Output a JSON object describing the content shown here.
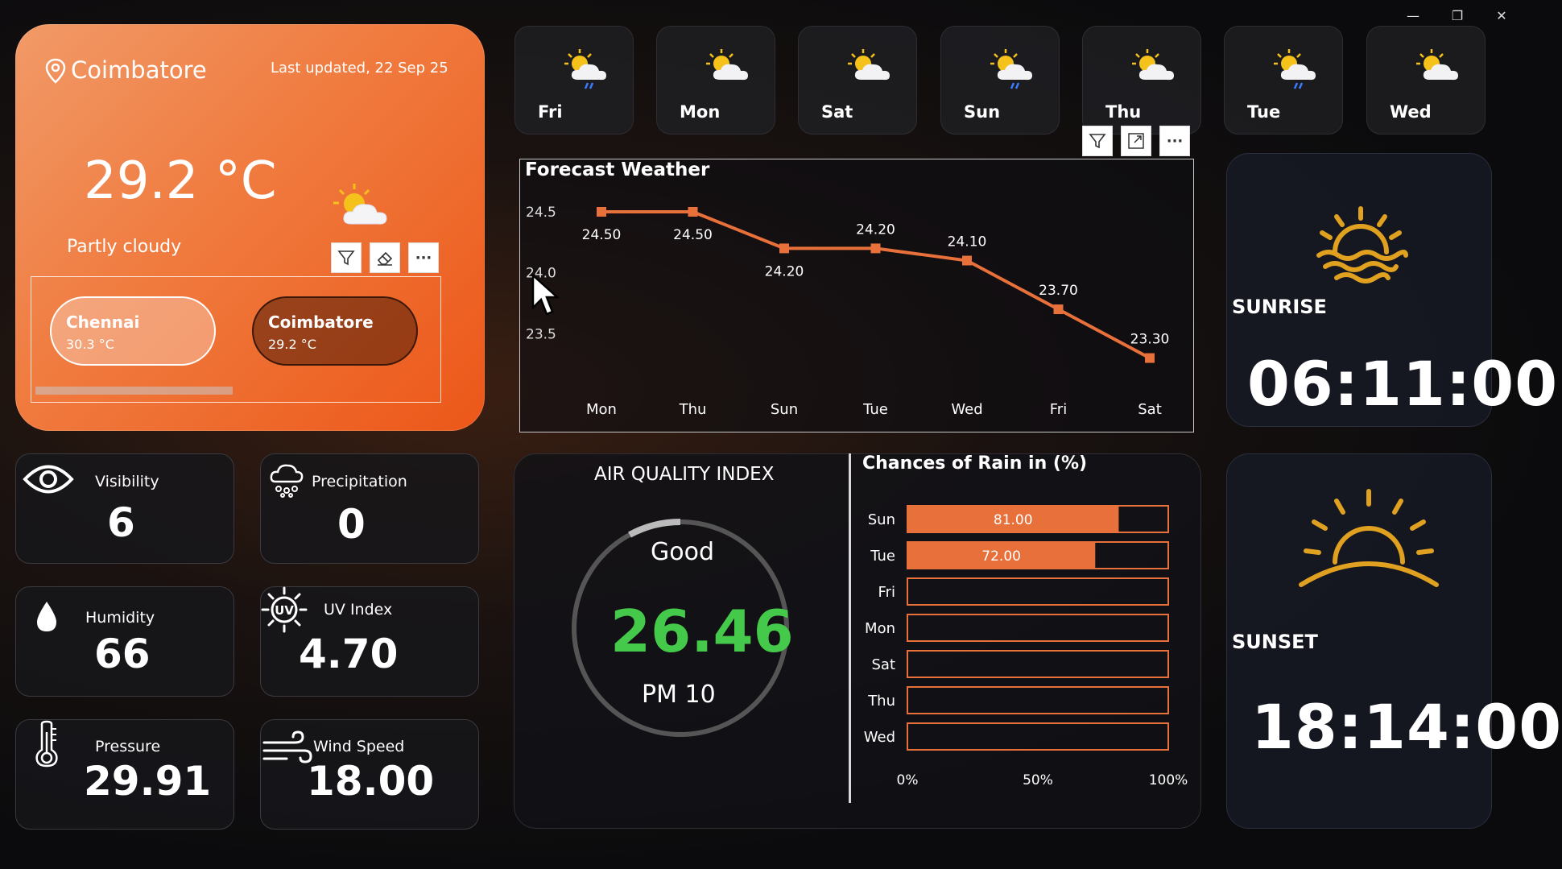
{
  "window": {
    "minimize": "—",
    "restore": "❐",
    "close": "✕"
  },
  "city_card": {
    "city": "Coimbatore",
    "last_updated": "Last updated, 22 Sep 25",
    "temperature": "29.2 °C",
    "condition": "Partly cloudy",
    "toolbar": [
      "filter-icon",
      "eraser-icon",
      "more-icon"
    ],
    "more_label": "···",
    "slicer": [
      {
        "name": "Chennai",
        "temp": "30.3 °C"
      },
      {
        "name": "Coimbatore",
        "temp": "29.2 °C"
      }
    ]
  },
  "days": [
    {
      "label": "Fri",
      "icon": "sun-cloud-rain-icon"
    },
    {
      "label": "Mon",
      "icon": "sun-cloud-icon"
    },
    {
      "label": "Sat",
      "icon": "sun-cloud-icon"
    },
    {
      "label": "Sun",
      "icon": "sun-cloud-rain-icon"
    },
    {
      "label": "Thu",
      "icon": "sun-cloud-icon"
    },
    {
      "label": "Tue",
      "icon": "sun-cloud-rain-icon"
    },
    {
      "label": "Wed",
      "icon": "sun-cloud-icon"
    }
  ],
  "chart_toolbar": {
    "more_label": "···"
  },
  "chart_data": [
    {
      "type": "line",
      "title": "Forecast Weather",
      "categories": [
        "Mon",
        "Thu",
        "Sun",
        "Tue",
        "Wed",
        "Fri",
        "Sat"
      ],
      "values": [
        24.5,
        24.5,
        24.2,
        24.2,
        24.1,
        23.7,
        23.3
      ],
      "data_labels": [
        "24.50",
        "24.50",
        "24.20",
        "24.20",
        "24.10",
        "23.70",
        "23.30"
      ],
      "yticks": [
        "24.5",
        "24.0",
        "23.5"
      ],
      "ylim": [
        23.2,
        24.6
      ],
      "color": "#e8703a"
    },
    {
      "type": "bar",
      "title": "Chances of Rain in (%)",
      "categories": [
        "Sun",
        "Tue",
        "Fri",
        "Mon",
        "Sat",
        "Thu",
        "Wed"
      ],
      "values": [
        81,
        72,
        0,
        0,
        0,
        0,
        0
      ],
      "data_labels": [
        "81.00",
        "72.00",
        "",
        "",
        "",
        "",
        ""
      ],
      "xticks": [
        "0%",
        "50%",
        "100%"
      ],
      "xlim": [
        0,
        100
      ],
      "color": "#e8703a"
    }
  ],
  "sunrise": {
    "title": "SUNRISE",
    "time": "06:11:00"
  },
  "sunset": {
    "title": "SUNSET",
    "time": "18:14:00"
  },
  "metrics": {
    "visibility": {
      "label": "Visibility",
      "value": "6"
    },
    "precipitation": {
      "label": "Precipitation",
      "value": "0"
    },
    "humidity": {
      "label": "Humidity",
      "value": "66"
    },
    "uv": {
      "label": "UV Index",
      "value": "4.70",
      "icon_text": "UV"
    },
    "pressure": {
      "label": "Pressure",
      "value": "29.91"
    },
    "wind": {
      "label": "Wind Speed",
      "value": "18.00"
    }
  },
  "aqi": {
    "title": "AIR QUALITY INDEX",
    "status": "Good",
    "value": "26.46",
    "pollutant": "PM 10",
    "value_color": "#45c94a"
  }
}
